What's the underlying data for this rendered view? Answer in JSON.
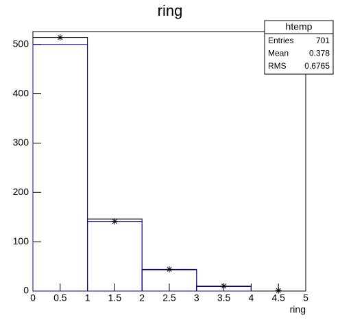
{
  "chart_data": {
    "type": "histogram",
    "title": "ring",
    "xlabel": "ring",
    "bins": [
      0,
      1,
      2,
      3,
      4,
      5
    ],
    "series": [
      {
        "color": "#000000",
        "style": "step",
        "values": [
          514,
          146,
          44,
          10,
          0
        ]
      },
      {
        "color": "#000099",
        "style": "step",
        "values": [
          500,
          141,
          43,
          9,
          0
        ]
      },
      {
        "color": "#000000",
        "style": "marker",
        "values": [
          514,
          141,
          44,
          10,
          1
        ]
      }
    ],
    "xlim": [
      0,
      5
    ],
    "xticks": [
      0,
      0.5,
      1,
      1.5,
      2,
      2.5,
      3,
      3.5,
      4,
      4.5,
      5
    ],
    "ylim": [
      0,
      526
    ],
    "yticks": [
      0,
      100,
      200,
      300,
      400,
      500
    ]
  },
  "stats": {
    "title": "htemp",
    "rows": [
      [
        "Entries",
        701
      ],
      [
        "Mean",
        0.378
      ],
      [
        "RMS",
        0.6765
      ]
    ]
  }
}
